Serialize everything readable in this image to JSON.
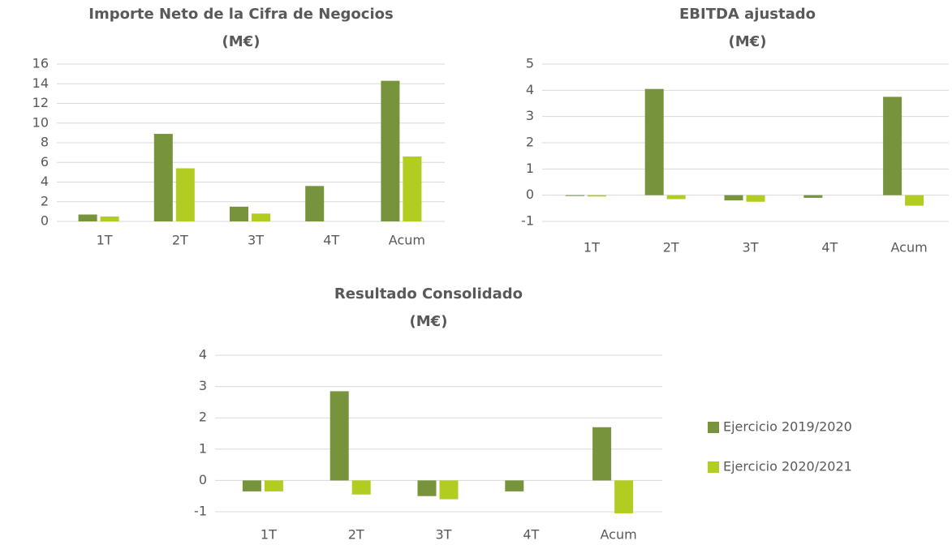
{
  "chart_data": [
    {
      "type": "bar",
      "title": "Importe Neto de la Cifra de Negocios",
      "subtitle": "(M€)",
      "categories": [
        "1T",
        "2T",
        "3T",
        "4T",
        "Acum"
      ],
      "series": [
        {
          "color": "#77933c",
          "values": [
            0.7,
            8.9,
            1.5,
            3.6,
            14.3
          ]
        },
        {
          "color": "#b3cc22",
          "values": [
            0.5,
            5.4,
            0.8,
            null,
            6.6
          ]
        }
      ],
      "ylim": [
        0,
        16
      ],
      "yticks": [
        0,
        2,
        4,
        6,
        8,
        10,
        12,
        14,
        16
      ],
      "grid": true
    },
    {
      "type": "bar",
      "title": "EBITDA ajustado",
      "subtitle": "(M€)",
      "categories": [
        "1T",
        "2T",
        "3T",
        "4T",
        "Acum"
      ],
      "series": [
        {
          "color": "#77933c",
          "values": [
            -0.03,
            4.05,
            -0.2,
            -0.1,
            3.75
          ]
        },
        {
          "color": "#b3cc22",
          "values": [
            -0.05,
            -0.15,
            -0.25,
            null,
            -0.4
          ]
        }
      ],
      "ylim": [
        -1,
        5
      ],
      "yticks": [
        -1,
        0,
        1,
        2,
        3,
        4,
        5
      ],
      "grid": true
    },
    {
      "type": "bar",
      "title": "Resultado Consolidado",
      "subtitle": "(M€)",
      "categories": [
        "1T",
        "2T",
        "3T",
        "4T",
        "Acum"
      ],
      "series": [
        {
          "name": "Ejercicio 2019/2020",
          "color": "#77933c",
          "values": [
            -0.35,
            2.85,
            -0.5,
            -0.35,
            1.7
          ]
        },
        {
          "name": "Ejercicio 2020/2021",
          "color": "#b3cc22",
          "values": [
            -0.35,
            -0.45,
            -0.6,
            null,
            -1.05
          ]
        }
      ],
      "ylim": [
        -1,
        4
      ],
      "yticks": [
        -1,
        0,
        1,
        2,
        3,
        4
      ],
      "grid": true,
      "legend": "right"
    }
  ]
}
